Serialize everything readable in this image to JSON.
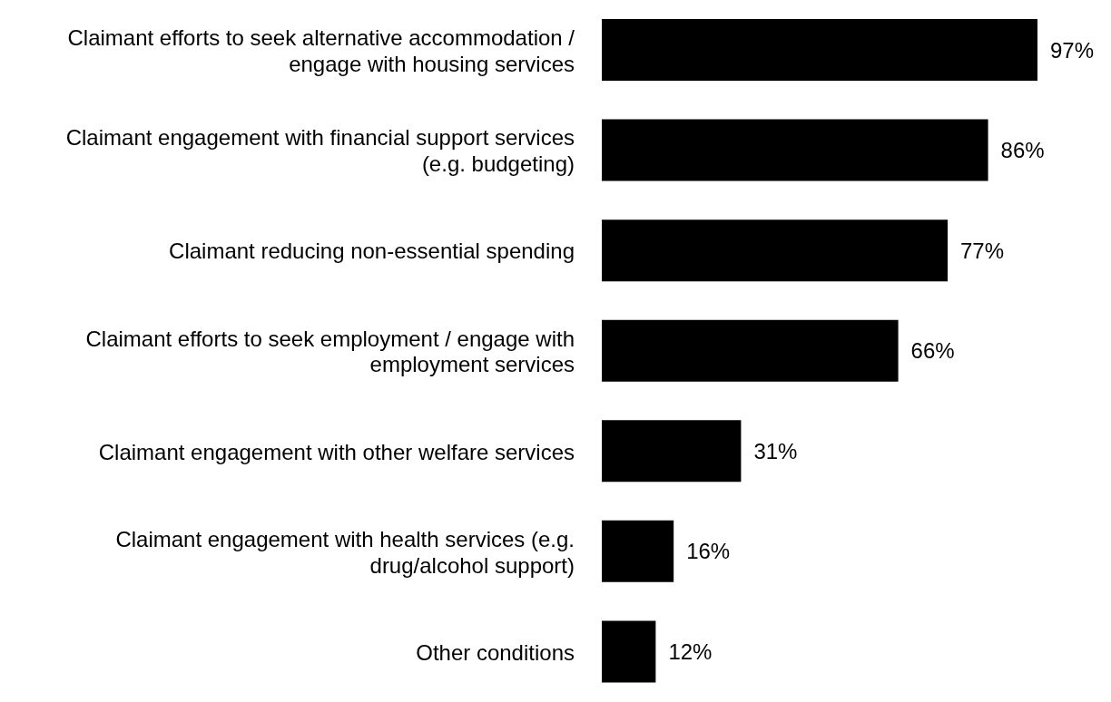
{
  "chart_data": {
    "type": "bar",
    "orientation": "horizontal",
    "categories": [
      "Claimant efforts to seek alternative accommodation / engage with housing services",
      "Claimant engagement with financial support services (e.g. budgeting)",
      "Claimant reducing non-essential spending",
      "Claimant efforts to seek employment / engage with employment services",
      "Claimant engagement with other welfare services",
      "Claimant engagement with health services (e.g. drug/alcohol support)",
      "Other conditions"
    ],
    "values": [
      97,
      86,
      77,
      66,
      31,
      16,
      12
    ],
    "value_labels": [
      "97%",
      "86%",
      "77%",
      "66%",
      "31%",
      "16%",
      "12%"
    ],
    "color": "#000000",
    "grid": false,
    "legend": false
  }
}
